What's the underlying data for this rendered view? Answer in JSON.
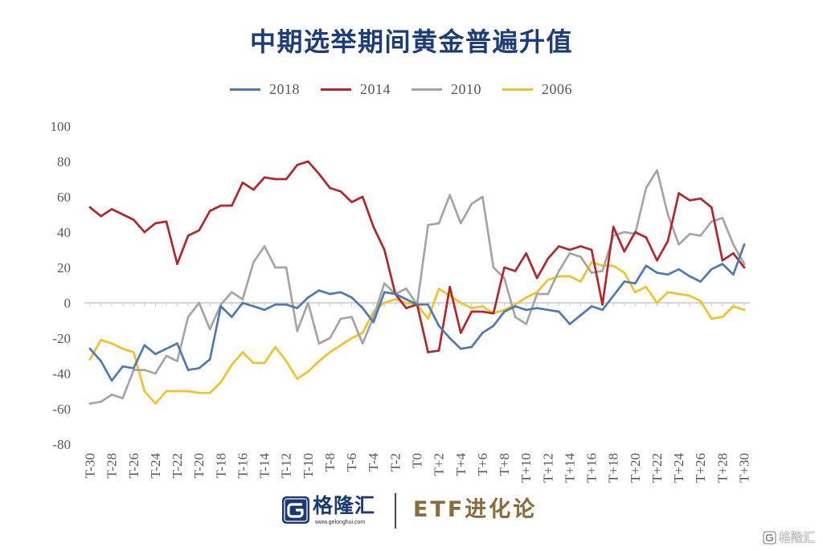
{
  "chart_data": {
    "type": "line",
    "title": "中期选举期间黄金普遍升值",
    "xlabel": "",
    "ylabel": "",
    "x": [
      -30,
      -29,
      -28,
      -27,
      -26,
      -25,
      -24,
      -23,
      -22,
      -21,
      -20,
      -19,
      -18,
      -17,
      -16,
      -15,
      -14,
      -13,
      -12,
      -11,
      -10,
      -9,
      -8,
      -7,
      -6,
      -5,
      -4,
      -3,
      -2,
      -1,
      0,
      1,
      2,
      3,
      4,
      5,
      6,
      7,
      8,
      9,
      10,
      11,
      12,
      13,
      14,
      15,
      16,
      17,
      18,
      19,
      20,
      21,
      22,
      23,
      24,
      25,
      26,
      27,
      28,
      29,
      30
    ],
    "x_tick_labels": [
      "T-30",
      "T-28",
      "T-26",
      "T-24",
      "T-22",
      "T-20",
      "T-18",
      "T-16",
      "T-14",
      "T-12",
      "T-10",
      "T-8",
      "T-6",
      "T-4",
      "T-2",
      "T0",
      "T+2",
      "T+4",
      "T+6",
      "T+8",
      "T+10",
      "T+12",
      "T+14",
      "T+16",
      "T+18",
      "T+20",
      "T+22",
      "T+24",
      "T+26",
      "T+28",
      "T+30"
    ],
    "y_ticks": [
      100,
      80,
      60,
      40,
      20,
      0,
      -20,
      -40,
      -60,
      -80
    ],
    "ylim": [
      -80,
      100
    ],
    "grid": false,
    "legend_position": "top",
    "series": [
      {
        "name": "2018",
        "color": "#4f79b3",
        "values": [
          -26,
          -33,
          -44,
          -36,
          -37,
          -24,
          -29,
          -26,
          -23,
          -38,
          -37,
          -32,
          -2,
          -8,
          0,
          -2,
          -4,
          -1,
          -1,
          -3,
          3,
          7,
          5,
          6,
          3,
          -3,
          -11,
          6,
          5,
          2,
          -1,
          -1,
          -13,
          -20,
          -26,
          -25,
          -17,
          -13,
          -5,
          -2,
          -4,
          -3,
          -4,
          -5,
          -12,
          -7,
          -2,
          -4,
          4,
          12,
          11,
          21,
          17,
          16,
          19,
          15,
          12,
          19,
          22,
          16,
          33
        ]
      },
      {
        "name": "2014",
        "color": "#b3262a",
        "values": [
          54,
          49,
          53,
          50,
          47,
          40,
          45,
          46,
          22,
          38,
          41,
          52,
          55,
          55,
          68,
          64,
          71,
          70,
          70,
          78,
          80,
          73,
          65,
          63,
          57,
          60,
          43,
          30,
          5,
          -3,
          -1,
          -28,
          -27,
          9,
          -17,
          -5,
          -5,
          -6,
          20,
          18,
          28,
          14,
          25,
          32,
          30,
          32,
          30,
          -1,
          43,
          29,
          40,
          37,
          24,
          35,
          62,
          58,
          59,
          54,
          24,
          28,
          20
        ]
      },
      {
        "name": "2010",
        "color": "#a5a5a5",
        "values": [
          -57,
          -56,
          -52,
          -54,
          -38,
          -38,
          -40,
          -30,
          -33,
          -8,
          0,
          -15,
          -1,
          6,
          2,
          23,
          32,
          20,
          20,
          -16,
          0,
          -23,
          -20,
          -9,
          -8,
          -23,
          -8,
          11,
          5,
          8,
          -1,
          44,
          45,
          61,
          45,
          56,
          60,
          20,
          14,
          -8,
          -12,
          5,
          5,
          18,
          28,
          26,
          17,
          18,
          38,
          40,
          39,
          65,
          75,
          50,
          33,
          39,
          38,
          46,
          48,
          33,
          22
        ]
      },
      {
        "name": "2006",
        "color": "#f4c02e",
        "values": [
          -32,
          -21,
          -23,
          -26,
          -28,
          -50,
          -57,
          -50,
          -50,
          -50,
          -51,
          -51,
          -45,
          -35,
          -28,
          -34,
          -34,
          -25,
          -33,
          -43,
          -39,
          -33,
          -28,
          -24,
          -20,
          -17,
          -5,
          0,
          2,
          0,
          -1,
          -9,
          8,
          4,
          0,
          -3,
          -2,
          -6,
          -4,
          -1,
          3,
          6,
          13,
          15,
          15,
          12,
          23,
          21,
          21,
          17,
          6,
          9,
          0,
          6,
          5,
          4,
          1,
          -9,
          -8,
          -2,
          -4
        ]
      }
    ]
  },
  "footer": {
    "logo_text": "格隆汇",
    "logo_url": "www.gelonghui.com",
    "logo_color": "#1b3a72",
    "brand": "ETF进化论",
    "brand_color": "#8b6a3c"
  },
  "watermark": {
    "text": "格隆汇",
    "icon": "gelonghui-logo-icon"
  }
}
